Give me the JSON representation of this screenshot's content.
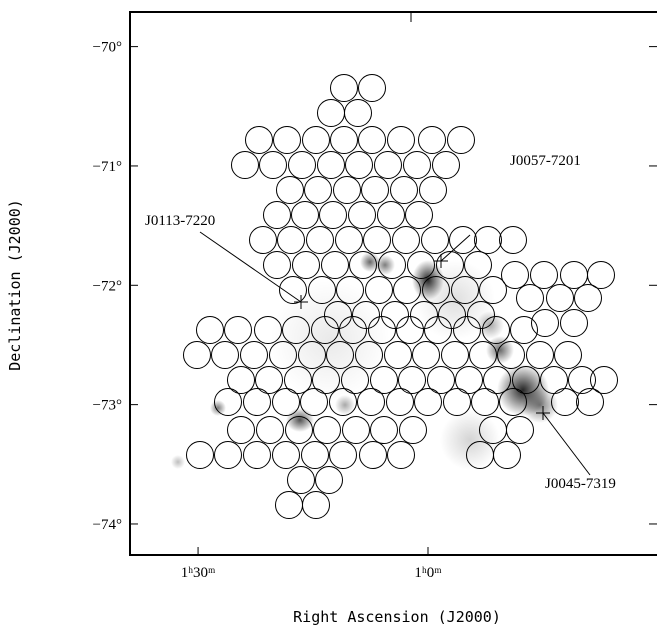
{
  "axes": {
    "x_label": "Right Ascension (J2000)",
    "y_label": "Declination (J2000)",
    "xlim": [
      24.72,
      7.53
    ],
    "ylim": [
      -69.71,
      -74.26
    ],
    "xticks": [
      {
        "value": 22.5,
        "label": "1ʰ30ᵐ"
      },
      {
        "value": 15,
        "label": "1ʰ0ᵐ"
      }
    ],
    "yticks": [
      {
        "value": -70,
        "label": "−70°"
      },
      {
        "value": -71,
        "label": "−71°"
      },
      {
        "value": -72,
        "label": "−72°"
      },
      {
        "value": -73,
        "label": "−73°"
      },
      {
        "value": -74,
        "label": "−74°"
      }
    ]
  },
  "annotations": [
    {
      "label": "J0057-7201"
    },
    {
      "label": "J0113-7220"
    },
    {
      "label": "J0045-7319"
    }
  ]
}
